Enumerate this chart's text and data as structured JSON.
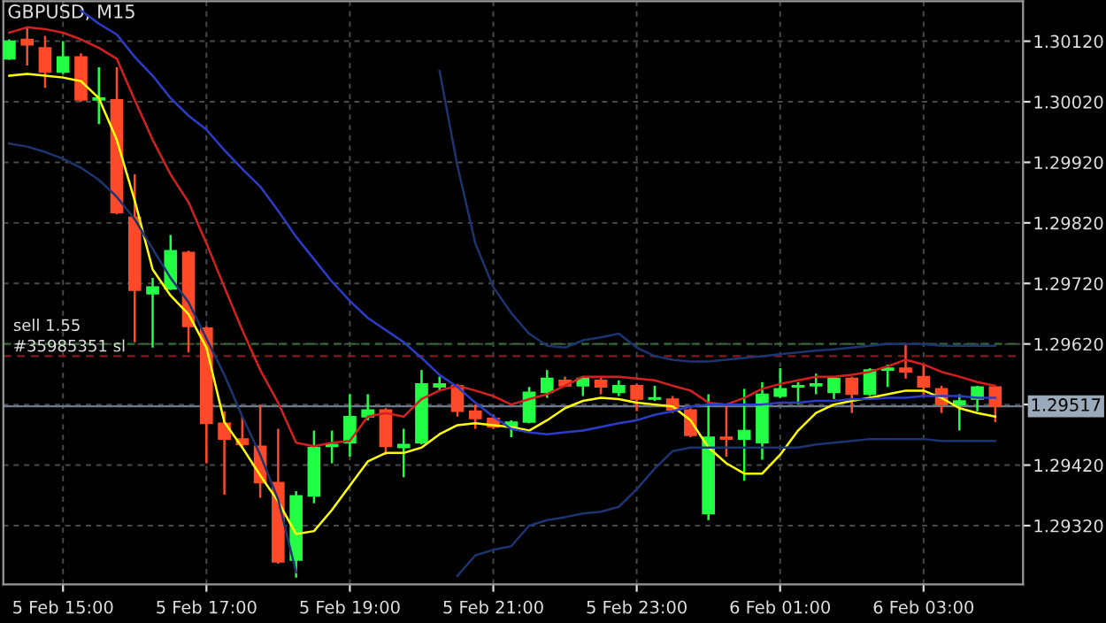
{
  "chart_data": {
    "type": "candlestick",
    "title": "GBPUSD, M15",
    "categories": [
      null,
      null,
      null,
      "5 Feb 15:00",
      null,
      null,
      null,
      null,
      null,
      null,
      null,
      "5 Feb 17:00",
      null,
      null,
      null,
      null,
      null,
      null,
      null,
      "5 Feb 19:00",
      null,
      null,
      null,
      null,
      null,
      null,
      null,
      "5 Feb 21:00",
      null,
      null,
      null,
      null,
      null,
      null,
      null,
      "5 Feb 23:00",
      null,
      null,
      null,
      null,
      null,
      null,
      null,
      "6 Feb 01:00",
      null,
      null,
      null,
      null,
      null,
      null,
      null,
      "6 Feb 03:00",
      null,
      null,
      null,
      null
    ],
    "ohlc": [
      [
        1.30091,
        1.30123,
        1.30089,
        1.3012
      ],
      [
        1.30123,
        1.30143,
        1.3008,
        1.30114
      ],
      [
        1.30109,
        1.30129,
        1.30043,
        1.30069
      ],
      [
        1.30069,
        1.3012,
        1.30066,
        1.30094
      ],
      [
        1.30094,
        1.301,
        1.3002,
        1.30023
      ],
      [
        1.30023,
        1.30077,
        1.29983,
        1.30026
      ],
      [
        1.30023,
        1.30077,
        1.29834,
        1.29837
      ],
      [
        1.29829,
        1.299,
        1.29623,
        1.29709
      ],
      [
        1.29703,
        1.29729,
        1.29614,
        1.29714
      ],
      [
        1.29711,
        1.298,
        1.29709,
        1.29774
      ],
      [
        1.29771,
        1.29774,
        1.29606,
        1.29649
      ],
      [
        1.29646,
        1.29649,
        1.29423,
        1.29489
      ],
      [
        1.29489,
        1.29509,
        1.29371,
        1.29463
      ],
      [
        1.29463,
        1.295,
        1.29449,
        1.29454
      ],
      [
        1.29451,
        1.2952,
        1.29366,
        1.29391
      ],
      [
        1.29391,
        1.2948,
        1.29257,
        1.2926
      ],
      [
        1.29263,
        1.29377,
        1.29234,
        1.29369
      ],
      [
        1.29369,
        1.29477,
        1.29357,
        1.29449
      ],
      [
        1.29451,
        1.29477,
        1.29423,
        1.29454
      ],
      [
        1.29457,
        1.29537,
        1.29434,
        1.295
      ],
      [
        1.295,
        1.29537,
        1.29494,
        1.29511
      ],
      [
        1.29511,
        1.29514,
        1.29437,
        1.29451
      ],
      [
        1.29449,
        1.2948,
        1.294,
        1.29454
      ],
      [
        1.29457,
        1.29577,
        1.29454,
        1.29554
      ],
      [
        1.29549,
        1.29566,
        1.29543,
        1.29554
      ],
      [
        1.29551,
        1.29554,
        1.295,
        1.29509
      ],
      [
        1.29509,
        1.2952,
        1.2948,
        1.29497
      ],
      [
        1.29497,
        1.29503,
        1.2948,
        1.29483
      ],
      [
        1.29483,
        1.29494,
        1.29466,
        1.29491
      ],
      [
        1.29491,
        1.29549,
        1.29489,
        1.2954
      ],
      [
        1.2954,
        1.29577,
        1.29531,
        1.29563
      ],
      [
        1.2956,
        1.29566,
        1.29549,
        1.29551
      ],
      [
        1.29551,
        1.29566,
        1.29534,
        1.29563
      ],
      [
        1.2956,
        1.29566,
        1.29537,
        1.29549
      ],
      [
        1.2954,
        1.2956,
        1.29534,
        1.29551
      ],
      [
        1.29551,
        1.29554,
        1.29509,
        1.29529
      ],
      [
        1.29529,
        1.29551,
        1.29526,
        1.29531
      ],
      [
        1.29529,
        1.29534,
        1.29506,
        1.29511
      ],
      [
        1.29511,
        1.29514,
        1.29466,
        1.29469
      ],
      [
        1.2934,
        1.29537,
        1.29329,
        1.29466
      ],
      [
        1.29466,
        1.2952,
        1.29434,
        1.29463
      ],
      [
        1.29463,
        1.29546,
        1.29394,
        1.29477
      ],
      [
        1.29457,
        1.29557,
        1.29429,
        1.29537
      ],
      [
        1.29534,
        1.2958,
        1.29531,
        1.29546
      ],
      [
        1.29549,
        1.29557,
        1.2952,
        1.29551
      ],
      [
        1.29551,
        1.29571,
        1.29537,
        1.29554
      ],
      [
        1.2954,
        1.29566,
        1.29529,
        1.29563
      ],
      [
        1.29563,
        1.29566,
        1.29506,
        1.29537
      ],
      [
        1.29537,
        1.2958,
        1.29534,
        1.29577
      ],
      [
        1.29577,
        1.29586,
        1.29549,
        1.2958
      ],
      [
        1.2958,
        1.2962,
        1.29563,
        1.29574
      ],
      [
        1.29566,
        1.29586,
        1.29534,
        1.29549
      ],
      [
        1.29546,
        1.29551,
        1.29506,
        1.2952
      ],
      [
        1.2952,
        1.29537,
        1.29477,
        1.29526
      ],
      [
        1.29529,
        1.29551,
        1.29509,
        1.29549
      ],
      [
        1.29549,
        1.29549,
        1.29491,
        1.29517
      ]
    ],
    "colors": [
      "#22ff44",
      "#ff4a2a",
      "#ff4a2a",
      "#22ff44",
      "#ff4a2a",
      "#22ff44",
      "#ff4a2a",
      "#ff4a2a",
      "#22ff44",
      "#22ff44",
      "#ff4a2a",
      "#ff4a2a",
      "#ff4a2a",
      "#ff4a2a",
      "#ff4a2a",
      "#ff4a2a",
      "#22ff44",
      "#22ff44",
      "#22ff44",
      "#22ff44",
      "#22ff44",
      "#ff4a2a",
      "#22ff44",
      "#22ff44",
      "#22ff44",
      "#ff4a2a",
      "#ff4a2a",
      "#ff4a2a",
      "#22ff44",
      "#22ff44",
      "#22ff44",
      "#ff4a2a",
      "#22ff44",
      "#ff4a2a",
      "#22ff44",
      "#ff4a2a",
      "#22ff44",
      "#ff4a2a",
      "#ff4a2a",
      "#22ff44",
      "#ff4a2a",
      "#22ff44",
      "#22ff44",
      "#22ff44",
      "#22ff44",
      "#22ff44",
      "#22ff44",
      "#ff4a2a",
      "#22ff44",
      "#22ff44",
      "#ff4a2a",
      "#ff4a2a",
      "#ff4a2a",
      "#22ff44",
      "#22ff44",
      "#ff4a2a"
    ],
    "series": [
      {
        "type": "line",
        "color": "#ffff00",
        "values": [
          1.30063,
          1.30066,
          1.30063,
          1.3006,
          1.30054,
          1.30026,
          1.29957,
          1.29857,
          1.29743,
          1.297,
          1.29669,
          1.29614,
          1.29491,
          1.29449,
          1.29403,
          1.2936,
          1.29306,
          1.29311,
          1.29346,
          1.29386,
          1.29426,
          1.2944,
          1.2944,
          1.29449,
          1.29471,
          1.29486,
          1.29489,
          1.29486,
          1.29483,
          1.29477,
          1.29494,
          1.29514,
          1.29526,
          1.29531,
          1.29529,
          1.29523,
          1.2952,
          1.29517,
          1.29494,
          1.29449,
          1.29423,
          1.29406,
          1.29406,
          1.29437,
          1.29477,
          1.29506,
          1.2952,
          1.29526,
          1.29531,
          1.29537,
          1.29543,
          1.29543,
          1.29531,
          1.29514,
          1.29506,
          1.295
        ]
      },
      {
        "type": "line",
        "color": "#d42020",
        "values": [
          1.30134,
          1.30143,
          1.3014,
          1.30134,
          1.30123,
          1.30109,
          1.30091,
          1.30023,
          1.29957,
          1.299,
          1.29854,
          1.29786,
          1.29714,
          1.29643,
          1.29577,
          1.29523,
          1.29457,
          1.29451,
          1.29457,
          1.2946,
          1.295,
          1.29506,
          1.295,
          1.29529,
          1.29543,
          1.29551,
          1.29543,
          1.29534,
          1.2952,
          1.29529,
          1.29537,
          1.29551,
          1.29566,
          1.29566,
          1.29566,
          1.29563,
          1.2956,
          1.29551,
          1.29543,
          1.29523,
          1.2952,
          1.29531,
          1.29546,
          1.29554,
          1.2956,
          1.29566,
          1.29566,
          1.29569,
          1.29574,
          1.29583,
          1.29594,
          1.29586,
          1.29574,
          1.29566,
          1.29557,
          1.29551
        ]
      },
      {
        "type": "line",
        "color": "#2a3cc8",
        "values": [
          null,
          null,
          null,
          null,
          1.30171,
          1.30149,
          1.30131,
          1.30094,
          1.30063,
          1.30026,
          1.29997,
          1.29974,
          1.2994,
          1.29909,
          1.2988,
          1.2984,
          1.29797,
          1.2976,
          1.29723,
          1.29691,
          1.29663,
          1.29643,
          1.29623,
          1.29597,
          1.29569,
          1.29549,
          1.29523,
          1.295,
          1.2948,
          1.29474,
          1.29471,
          1.29474,
          1.29477,
          1.29483,
          1.29489,
          1.29494,
          1.29503,
          1.29509,
          1.29517,
          1.2952,
          1.2952,
          1.2952,
          1.2952,
          1.29523,
          1.29523,
          1.29526,
          1.29526,
          1.29529,
          1.29529,
          1.29531,
          1.29531,
          1.29534,
          1.29534,
          1.29534,
          1.29531,
          1.29531
        ]
      },
      {
        "type": "line",
        "color": "#1c3470",
        "values": [
          1.29951,
          1.29946,
          1.29937,
          1.29926,
          1.29911,
          1.29891,
          1.29863,
          1.29826,
          1.29777,
          1.29729,
          1.29689,
          1.29629,
          1.29569,
          1.295,
          1.29437,
          1.29363,
          1.29243,
          null,
          null,
          null,
          null,
          null,
          null,
          null,
          null,
          1.29237,
          1.29271,
          1.2928,
          1.29286,
          1.2932,
          1.29329,
          1.29334,
          1.2934,
          1.29343,
          1.29351,
          1.2938,
          1.29414,
          1.29443,
          1.29449,
          1.29449,
          1.29449,
          1.29449,
          1.29449,
          1.29449,
          1.29449,
          1.29454,
          1.29457,
          1.2946,
          1.29463,
          1.29463,
          1.29463,
          1.29463,
          1.2946,
          1.2946,
          1.2946,
          1.2946
        ]
      },
      {
        "type": "line",
        "color": "#1c3470",
        "values": [
          null,
          null,
          null,
          null,
          null,
          null,
          null,
          null,
          null,
          null,
          null,
          null,
          null,
          null,
          null,
          null,
          null,
          null,
          null,
          null,
          null,
          null,
          null,
          null,
          1.30071,
          1.29914,
          1.29786,
          1.29714,
          1.29671,
          1.29637,
          1.29617,
          1.29614,
          1.29626,
          1.29631,
          1.29637,
          1.29614,
          1.296,
          1.29594,
          1.29591,
          1.29591,
          1.29594,
          1.29597,
          1.296,
          1.29603,
          1.29606,
          1.29609,
          1.29611,
          1.29614,
          1.29617,
          1.2962,
          1.2962,
          1.2962,
          1.29617,
          1.29617,
          1.29617,
          1.29617
        ]
      }
    ],
    "ylim": [
      1.29223,
      1.30186
    ],
    "yticks": [
      {
        "value": 1.2932,
        "label": "1.29320"
      },
      {
        "value": 1.2942,
        "label": "1.29420"
      },
      {
        "value": 1.2952,
        "label": null
      },
      {
        "value": 1.2962,
        "label": "1.29620"
      },
      {
        "value": 1.2972,
        "label": "1.29720"
      },
      {
        "value": 1.2982,
        "label": "1.29820"
      },
      {
        "value": 1.2992,
        "label": "1.29920"
      },
      {
        "value": 1.3002,
        "label": "1.30020"
      },
      {
        "value": 1.3012,
        "label": "1.30120"
      }
    ],
    "ref_lines": [
      {
        "axis": "y",
        "value": 1.29517,
        "label": "1.29517",
        "color": "#6a7a8a",
        "line_style": "solid"
      },
      {
        "axis": "y",
        "value": 1.2962,
        "label": "sell 1.55",
        "color": "#2e6a2e",
        "line_style": "dashed"
      },
      {
        "axis": "y",
        "value": 1.296,
        "label": "#35985351 sl",
        "color": "#8a1a1a",
        "line_style": "dashed"
      }
    ],
    "grid": true
  }
}
